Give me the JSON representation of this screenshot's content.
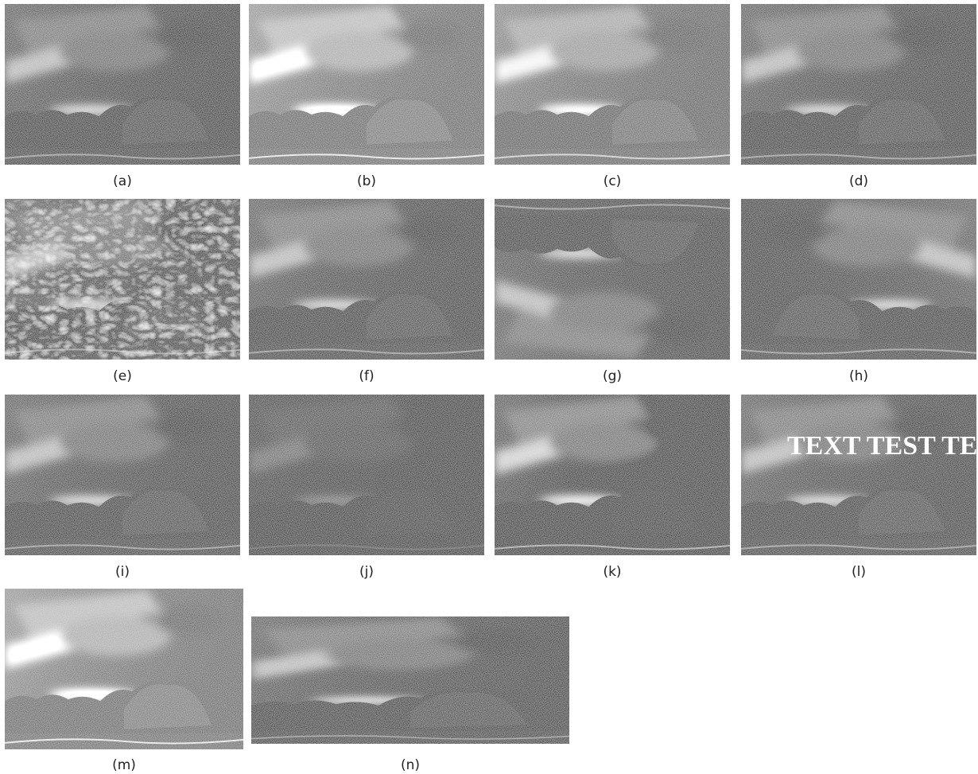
{
  "panels": [
    {
      "label": "(a)"
    },
    {
      "label": "(b)"
    },
    {
      "label": "(c)"
    },
    {
      "label": "(d)"
    },
    {
      "label": "(e)"
    },
    {
      "label": "(f)"
    },
    {
      "label": "(g)"
    },
    {
      "label": "(h)"
    },
    {
      "label": "(i)"
    },
    {
      "label": "(j)"
    },
    {
      "label": "(k)"
    },
    {
      "label": "(l)",
      "overlay_text": "TEXT TEST TE"
    },
    {
      "label": "(m)"
    },
    {
      "label": "(n)"
    }
  ]
}
